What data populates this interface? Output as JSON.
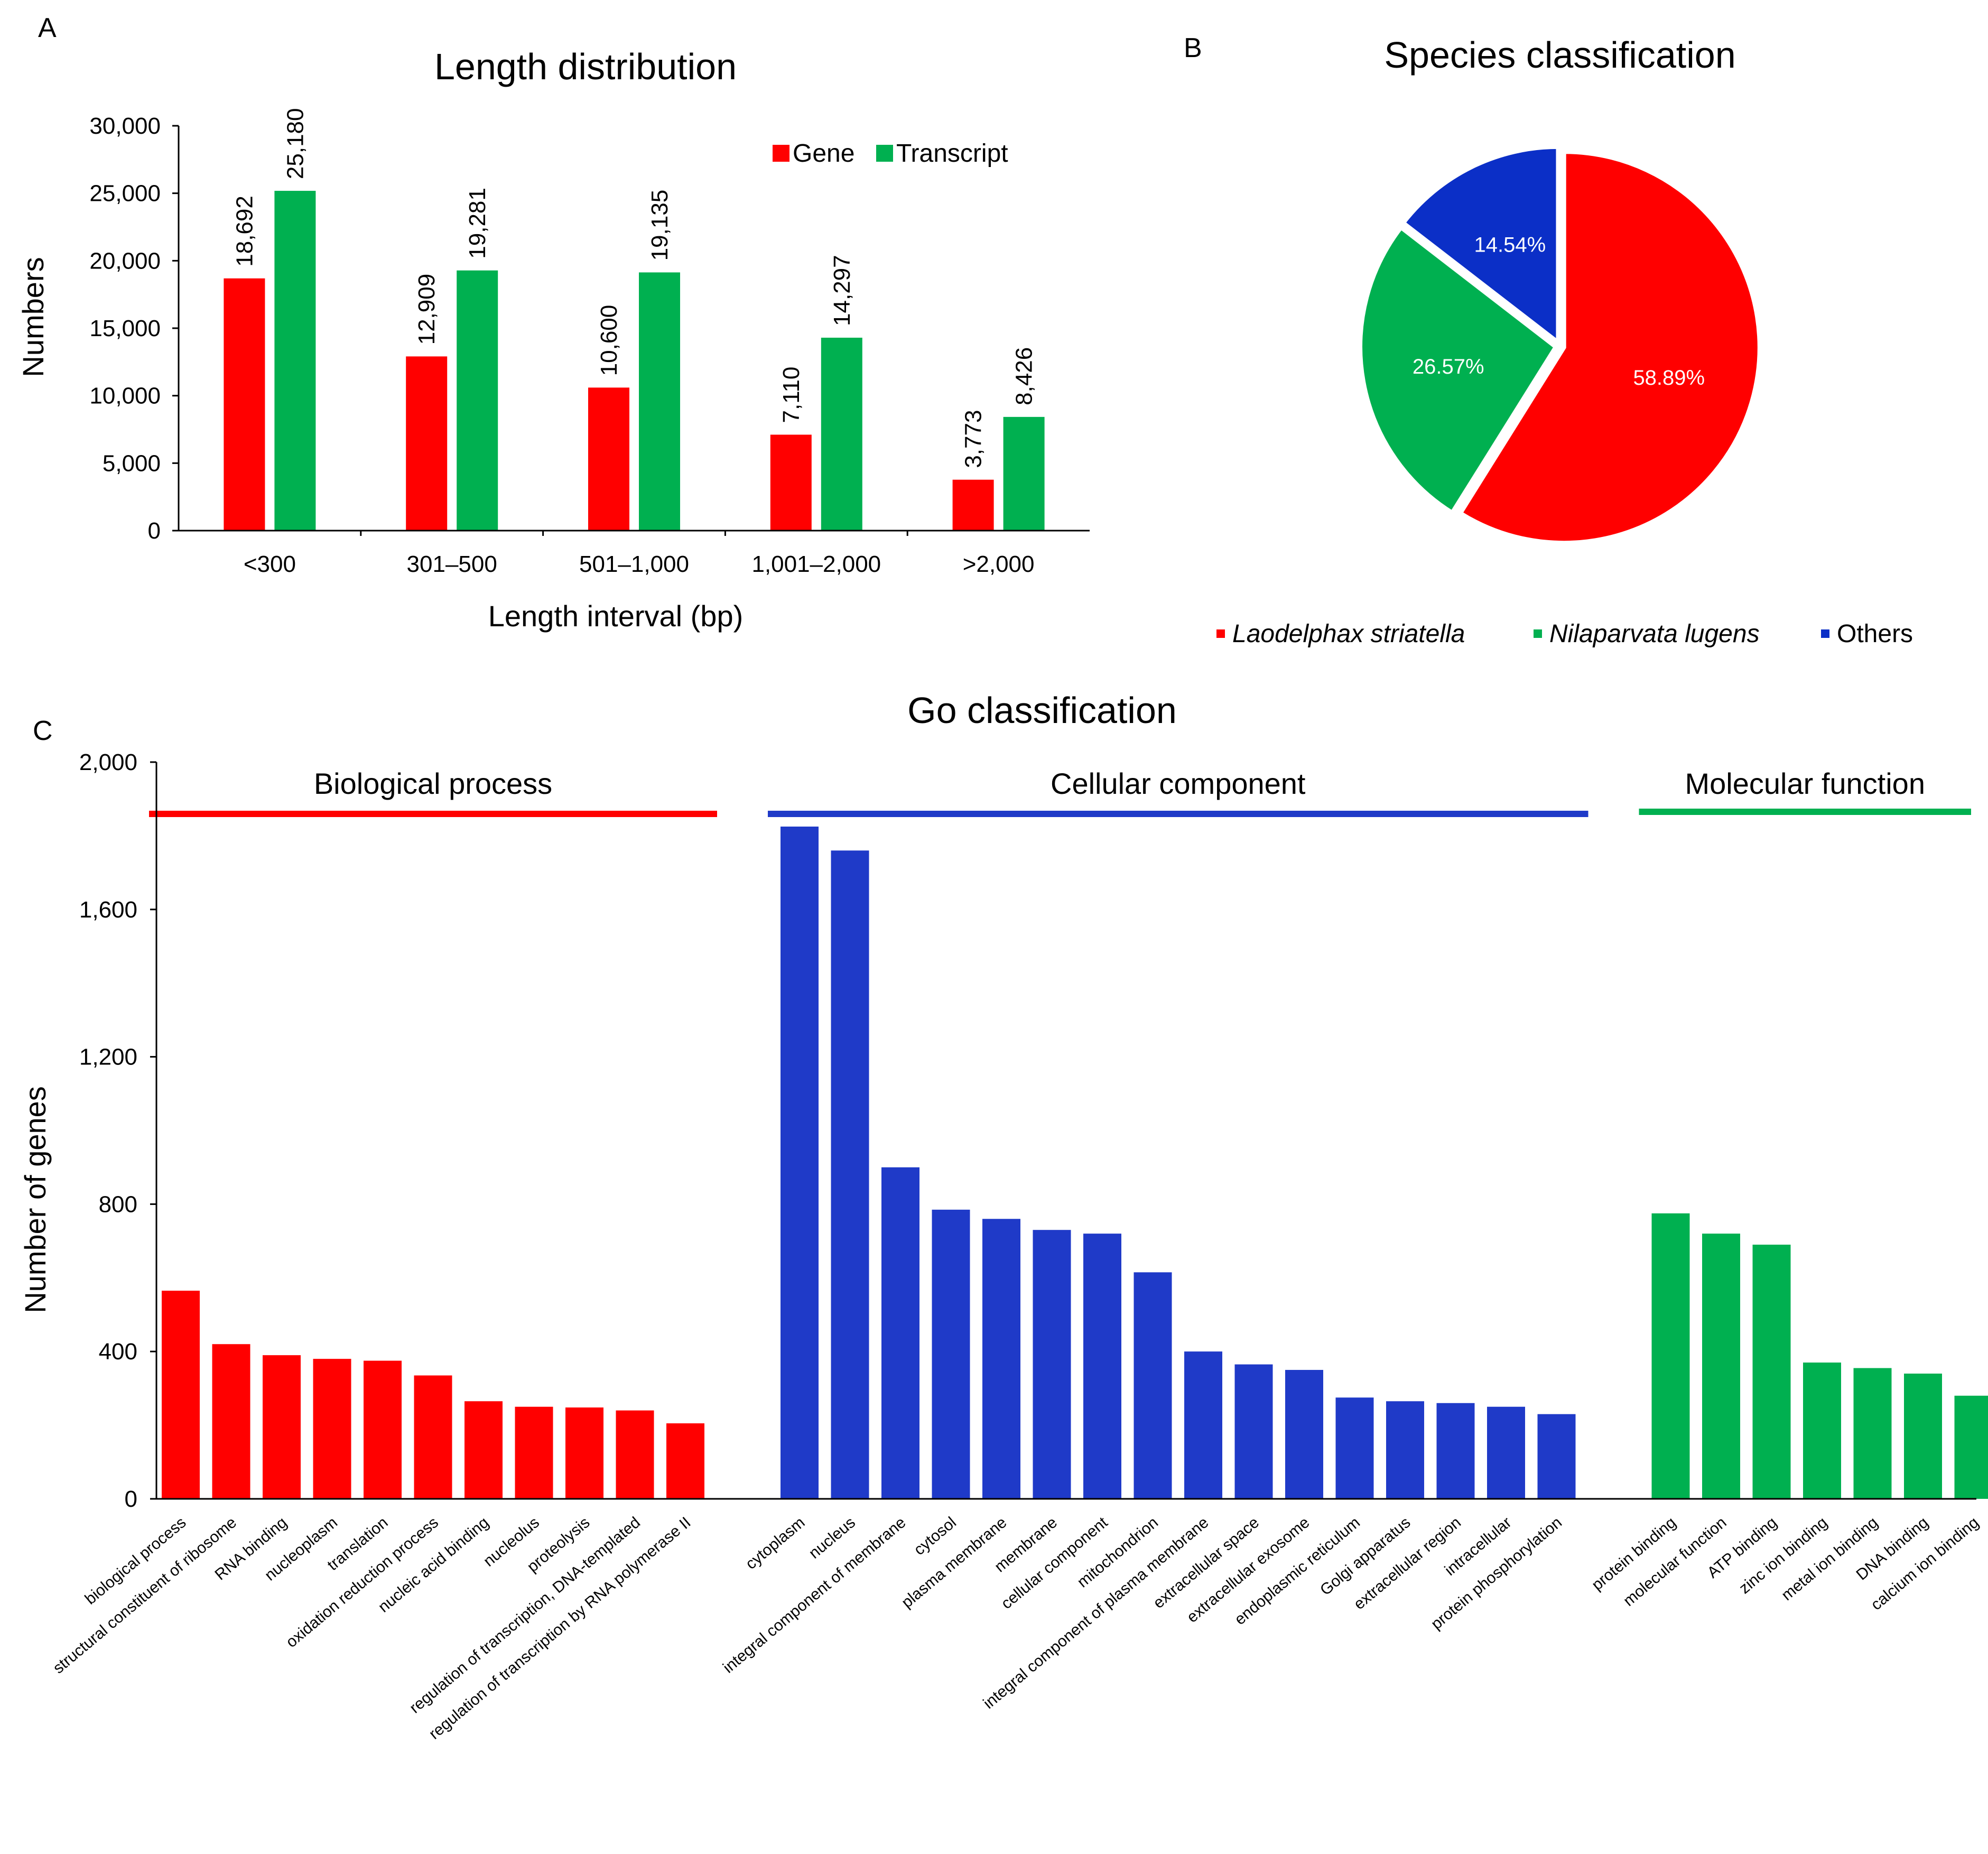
{
  "figure": {
    "panels": {
      "a": "A",
      "b": "B",
      "c": "C"
    }
  },
  "colors": {
    "red": "#ff0000",
    "green": "#00b050",
    "blue": "#1f3ac8",
    "pie_red": "#ff0000",
    "pie_green": "#00b050",
    "pie_blue": "#0b2fc7"
  },
  "chart_data": [
    {
      "id": "length",
      "type": "bar",
      "title": "Length distribution",
      "xlabel": "Length interval (bp)",
      "ylabel": "Numbers",
      "ylim": [
        0,
        30000
      ],
      "yticks": [
        0,
        5000,
        10000,
        15000,
        20000,
        25000,
        30000
      ],
      "ytick_labels": [
        "0",
        "5,000",
        "10,000",
        "15,000",
        "20,000",
        "25,000",
        "30,000"
      ],
      "categories": [
        "<300",
        "301–500",
        "501–1,000",
        "1,001–2,000",
        ">2,000"
      ],
      "legend_position": "top-right",
      "series": [
        {
          "name": "Gene",
          "values": [
            18692,
            12909,
            10600,
            7110,
            3773
          ],
          "labels": [
            "18,692",
            "12,909",
            "10,600",
            "7,110",
            "3,773"
          ],
          "color": "#ff0000"
        },
        {
          "name": "Transcript",
          "values": [
            25180,
            19281,
            19135,
            14297,
            8426
          ],
          "labels": [
            "25,180",
            "19,281",
            "19,135",
            "14,297",
            "8,426"
          ],
          "color": "#00b050"
        }
      ]
    },
    {
      "id": "species",
      "type": "pie",
      "title": "Species classification",
      "legend_position": "bottom",
      "slices": [
        {
          "name": "Laodelphax striatella",
          "value": 58.89,
          "label": "58.89%",
          "color": "#ff0000"
        },
        {
          "name": "Nilaparvata lugens",
          "value": 26.57,
          "label": "26.57%",
          "color": "#00b050"
        },
        {
          "name": "Others",
          "value": 14.54,
          "label": "14.54%",
          "color": "#0b2fc7"
        }
      ]
    },
    {
      "id": "go",
      "type": "bar",
      "title": "Go classification",
      "ylabel": "Number of genes",
      "ylim": [
        0,
        2000
      ],
      "yticks": [
        0,
        400,
        800,
        1200,
        1600,
        2000
      ],
      "ytick_labels": [
        "0",
        "400",
        "800",
        "1,200",
        "1,600",
        "2,000"
      ],
      "groups": [
        {
          "name": "Biological process",
          "color": "#ff0000",
          "categories": [
            "biological process",
            "structural constituent of ribosome",
            "RNA binding",
            "nucleoplasm",
            "translation",
            "oxidation reduction process",
            "nucleic acid binding",
            "nucleolus",
            "proteolysis",
            "regulation of transcription, DNA-templated",
            "regulation of transcription by RNA polymerase II"
          ],
          "values": [
            565,
            420,
            390,
            380,
            375,
            335,
            265,
            250,
            248,
            240,
            205
          ]
        },
        {
          "name": "Cellular component",
          "color": "#1f3ac8",
          "categories": [
            "cytoplasm",
            "nucleus",
            "integral component of membrane",
            "cytosol",
            "plasma membrane",
            "membrane",
            "cellular component",
            "mitochondrion",
            "integral component of plasma membrane",
            "extracellular space",
            "extracellular exosome",
            "endoplasmic reticulum",
            "Golgi apparatus",
            "extracellular region",
            "intracellular",
            "protein phosphorylation"
          ],
          "values": [
            1825,
            1760,
            900,
            785,
            760,
            730,
            720,
            615,
            400,
            365,
            350,
            275,
            265,
            260,
            250,
            230
          ]
        },
        {
          "name": "Molecular function",
          "color": "#00b050",
          "categories": [
            "protein binding",
            "molecular function",
            "ATP binding",
            "zinc ion binding",
            "metal ion binding",
            "DNA binding",
            "calcium ion binding"
          ],
          "values": [
            775,
            720,
            690,
            370,
            355,
            340,
            280
          ]
        }
      ]
    }
  ]
}
